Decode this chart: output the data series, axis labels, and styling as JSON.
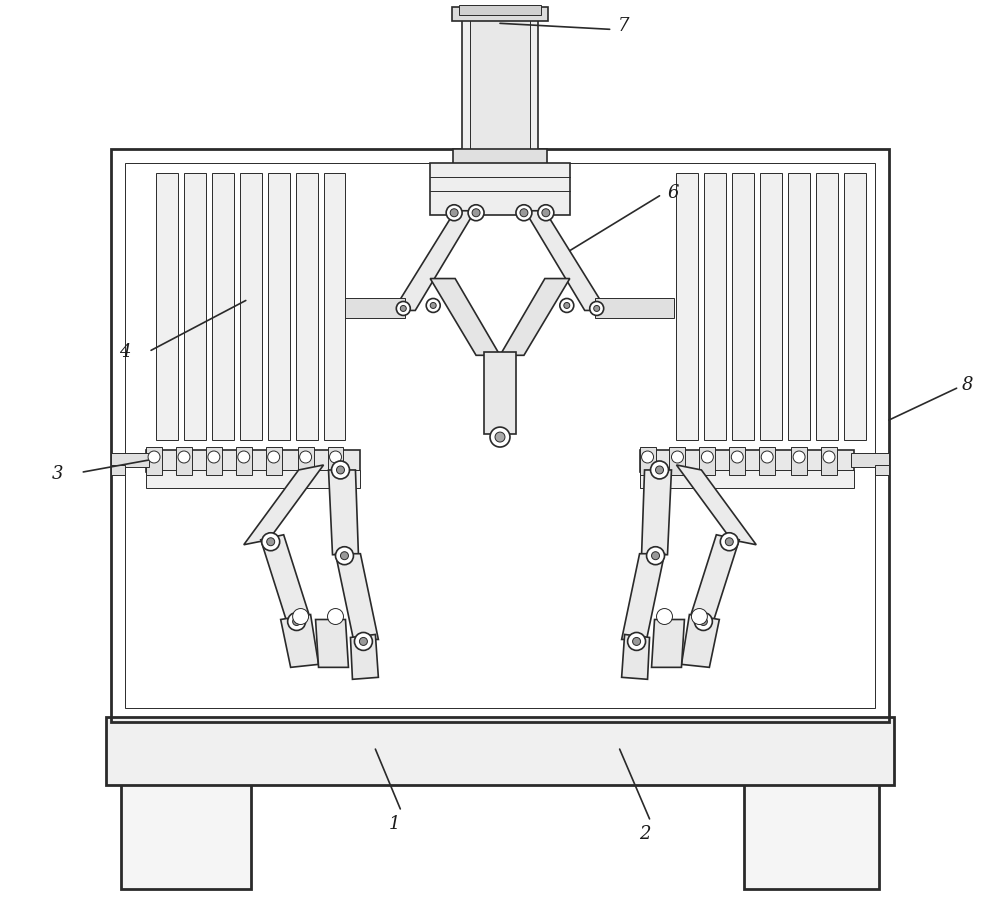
{
  "bg_color": "#ffffff",
  "line_color": "#2a2a2a",
  "lw": 1.2,
  "lw_thin": 0.7,
  "lw_thick": 2.0,
  "label_fontsize": 13,
  "label_color": "#1a1a1a"
}
